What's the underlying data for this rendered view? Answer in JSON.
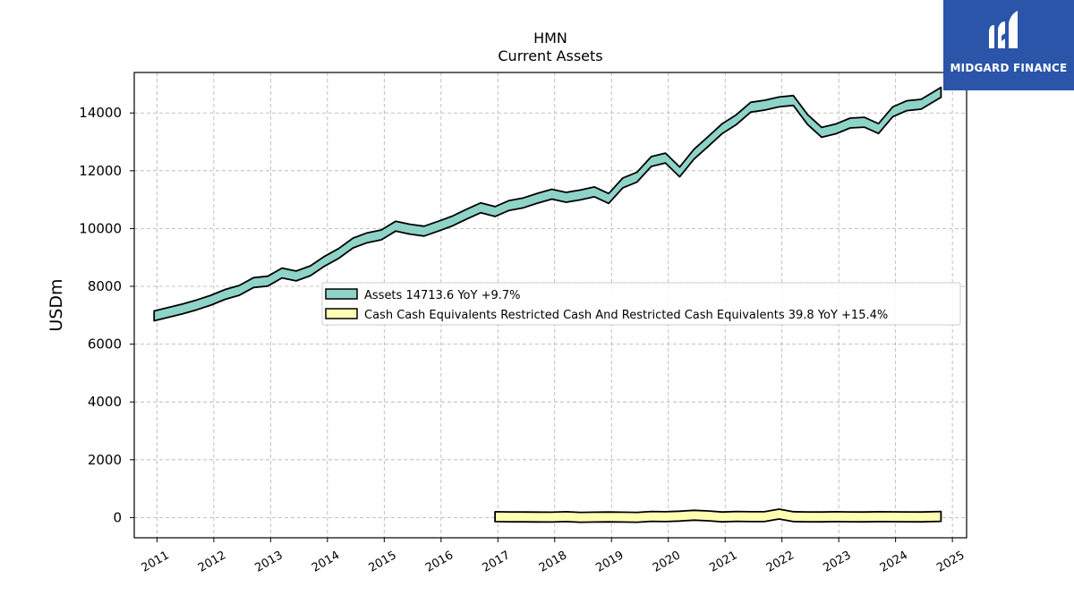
{
  "brand": {
    "name": "MIDGARD FINANCE",
    "bg_color": "#2a55a8"
  },
  "chart_data": {
    "type": "line",
    "title": "HMN",
    "subtitle": "Current  Assets",
    "ylabel": "USDm",
    "xlabel": "",
    "ylim": [
      -700,
      15400
    ],
    "xlim": [
      2010.6,
      2025.25
    ],
    "yticks": [
      0,
      2000,
      4000,
      6000,
      8000,
      10000,
      12000,
      14000
    ],
    "xticks": [
      2011,
      2012,
      2013,
      2014,
      2015,
      2016,
      2017,
      2018,
      2019,
      2020,
      2021,
      2022,
      2023,
      2024,
      2025
    ],
    "grid": true,
    "legend_position": "center-right",
    "series": [
      {
        "name": "Assets",
        "legend_label": "Assets  14713.6 YoY +9.7%",
        "color": "#8dd3c7",
        "x": [
          2010.95,
          2011.2,
          2011.45,
          2011.7,
          2011.95,
          2012.2,
          2012.45,
          2012.7,
          2012.95,
          2013.2,
          2013.45,
          2013.7,
          2013.95,
          2014.2,
          2014.45,
          2014.7,
          2014.95,
          2015.2,
          2015.45,
          2015.7,
          2015.95,
          2016.2,
          2016.45,
          2016.7,
          2016.95,
          2017.2,
          2017.45,
          2017.7,
          2017.95,
          2018.2,
          2018.45,
          2018.7,
          2018.95,
          2019.2,
          2019.45,
          2019.7,
          2019.95,
          2020.2,
          2020.45,
          2020.7,
          2020.95,
          2021.2,
          2021.45,
          2021.7,
          2021.95,
          2022.2,
          2022.45,
          2022.7,
          2022.95,
          2023.2,
          2023.45,
          2023.7,
          2023.95,
          2024.2,
          2024.45,
          2024.8
        ],
        "values": [
          6980,
          7100,
          7220,
          7360,
          7520,
          7720,
          7860,
          8130,
          8180,
          8460,
          8360,
          8540,
          8870,
          9140,
          9500,
          9680,
          9780,
          10080,
          9980,
          9910,
          10080,
          10260,
          10500,
          10720,
          10590,
          10800,
          10890,
          11050,
          11190,
          11080,
          11160,
          11270,
          11040,
          11580,
          11780,
          12320,
          12440,
          11960,
          12570,
          13010,
          13460,
          13770,
          14200,
          14270,
          14380,
          14430,
          13770,
          13330,
          13450,
          13650,
          13680,
          13460,
          14040,
          14250,
          14300,
          14714
        ]
      },
      {
        "name": "Cash Cash Equivalents Restricted Cash And Restricted Cash Equivalents",
        "legend_label": "Cash Cash Equivalents Restricted Cash And Restricted Cash Equivalents  39.8 YoY +15.4%",
        "color": "#ffffb3",
        "x": [
          2016.95,
          2017.2,
          2017.45,
          2017.7,
          2017.95,
          2018.2,
          2018.45,
          2018.7,
          2018.95,
          2019.2,
          2019.45,
          2019.7,
          2019.95,
          2020.2,
          2020.45,
          2020.7,
          2020.95,
          2021.2,
          2021.45,
          2021.7,
          2021.95,
          2022.2,
          2022.45,
          2022.7,
          2022.95,
          2023.2,
          2023.45,
          2023.7,
          2023.95,
          2024.2,
          2024.45,
          2024.8
        ],
        "values": [
          30,
          25,
          20,
          18,
          15,
          30,
          10,
          15,
          20,
          15,
          10,
          40,
          30,
          50,
          80,
          60,
          20,
          40,
          30,
          35,
          120,
          30,
          25,
          20,
          30,
          25,
          20,
          30,
          28,
          25,
          20,
          40
        ]
      }
    ]
  }
}
